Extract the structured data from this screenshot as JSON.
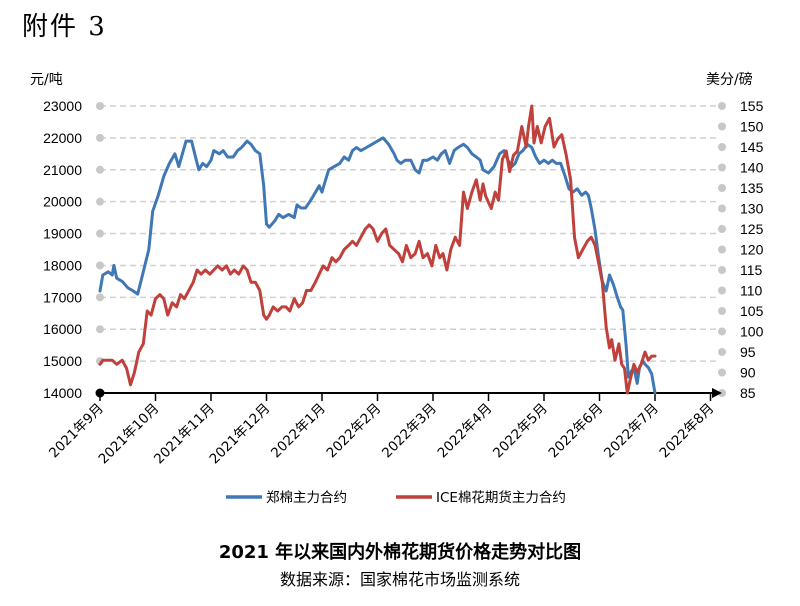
{
  "attachment_label": "附件 3",
  "title": "2021 年以来国内外棉花期货价格走势对比图",
  "source": "数据来源：国家棉花市场监测系统",
  "colors": {
    "zce": "#3f78b4",
    "ice": "#c0413c",
    "grid": "#d0d0d0",
    "axis": "#000000",
    "gridDot": "#c8c8c8"
  },
  "chart_data": {
    "type": "line",
    "y_left_label": "元/吨",
    "y_right_label": "美分/磅",
    "ylim_left": [
      14000,
      23000
    ],
    "ylim_right": [
      85,
      155
    ],
    "y_left_ticks": [
      "23000",
      "22000",
      "21000",
      "20000",
      "19000",
      "18000",
      "17000",
      "16000",
      "15000",
      "14000"
    ],
    "y_right_ticks": [
      "155",
      "150",
      "145",
      "140",
      "135",
      "130",
      "125",
      "120",
      "115",
      "110",
      "105",
      "100",
      "95",
      "90",
      "85"
    ],
    "x_categories": [
      "2021年9月",
      "2021年10月",
      "2021年11月",
      "2021年12月",
      "2022年1月",
      "2022年2月",
      "2022年3月",
      "2022年4月",
      "2022年5月",
      "2022年6月",
      "2022年7月",
      "2022年8月"
    ],
    "series": [
      {
        "name": "郑棉主力合约",
        "axis": "left",
        "points": [
          [
            0.0,
            17200
          ],
          [
            0.05,
            17700
          ],
          [
            0.15,
            17800
          ],
          [
            0.22,
            17700
          ],
          [
            0.25,
            18000
          ],
          [
            0.3,
            17600
          ],
          [
            0.4,
            17500
          ],
          [
            0.5,
            17300
          ],
          [
            0.6,
            17200
          ],
          [
            0.68,
            17100
          ],
          [
            0.78,
            17800
          ],
          [
            0.88,
            18500
          ],
          [
            0.95,
            19700
          ],
          [
            1.05,
            20200
          ],
          [
            1.15,
            20800
          ],
          [
            1.25,
            21200
          ],
          [
            1.35,
            21500
          ],
          [
            1.42,
            21100
          ],
          [
            1.5,
            21600
          ],
          [
            1.55,
            21900
          ],
          [
            1.65,
            21900
          ],
          [
            1.72,
            21400
          ],
          [
            1.78,
            21000
          ],
          [
            1.85,
            21200
          ],
          [
            1.92,
            21100
          ],
          [
            2.0,
            21300
          ],
          [
            2.05,
            21600
          ],
          [
            2.15,
            21500
          ],
          [
            2.22,
            21600
          ],
          [
            2.3,
            21400
          ],
          [
            2.4,
            21400
          ],
          [
            2.48,
            21600
          ],
          [
            2.55,
            21700
          ],
          [
            2.65,
            21900
          ],
          [
            2.72,
            21800
          ],
          [
            2.8,
            21600
          ],
          [
            2.88,
            21500
          ],
          [
            2.95,
            20500
          ],
          [
            3.0,
            19300
          ],
          [
            3.05,
            19200
          ],
          [
            3.15,
            19400
          ],
          [
            3.22,
            19600
          ],
          [
            3.3,
            19500
          ],
          [
            3.4,
            19600
          ],
          [
            3.5,
            19500
          ],
          [
            3.55,
            19900
          ],
          [
            3.62,
            19800
          ],
          [
            3.7,
            19800
          ],
          [
            3.78,
            20000
          ],
          [
            3.85,
            20200
          ],
          [
            3.95,
            20500
          ],
          [
            4.0,
            20300
          ],
          [
            4.05,
            20600
          ],
          [
            4.12,
            21000
          ],
          [
            4.22,
            21100
          ],
          [
            4.32,
            21200
          ],
          [
            4.4,
            21400
          ],
          [
            4.48,
            21300
          ],
          [
            4.55,
            21600
          ],
          [
            4.62,
            21700
          ],
          [
            4.7,
            21600
          ],
          [
            4.8,
            21700
          ],
          [
            4.9,
            21800
          ],
          [
            5.0,
            21900
          ],
          [
            5.1,
            22000
          ],
          [
            5.2,
            21800
          ],
          [
            5.3,
            21500
          ],
          [
            5.35,
            21300
          ],
          [
            5.42,
            21200
          ],
          [
            5.5,
            21300
          ],
          [
            5.6,
            21300
          ],
          [
            5.68,
            21000
          ],
          [
            5.75,
            20900
          ],
          [
            5.82,
            21300
          ],
          [
            5.9,
            21300
          ],
          [
            6.0,
            21400
          ],
          [
            6.08,
            21300
          ],
          [
            6.15,
            21500
          ],
          [
            6.22,
            21600
          ],
          [
            6.3,
            21200
          ],
          [
            6.38,
            21600
          ],
          [
            6.45,
            21700
          ],
          [
            6.55,
            21800
          ],
          [
            6.62,
            21700
          ],
          [
            6.7,
            21500
          ],
          [
            6.78,
            21400
          ],
          [
            6.85,
            21300
          ],
          [
            6.9,
            21000
          ],
          [
            7.0,
            20900
          ],
          [
            7.1,
            21100
          ],
          [
            7.2,
            21500
          ],
          [
            7.28,
            21600
          ],
          [
            7.35,
            21300
          ],
          [
            7.42,
            21100
          ],
          [
            7.48,
            21200
          ],
          [
            7.55,
            21500
          ],
          [
            7.62,
            21600
          ],
          [
            7.7,
            21800
          ],
          [
            7.78,
            21700
          ],
          [
            7.85,
            21400
          ],
          [
            7.92,
            21200
          ],
          [
            8.0,
            21300
          ],
          [
            8.08,
            21200
          ],
          [
            8.15,
            21300
          ],
          [
            8.22,
            21200
          ],
          [
            8.3,
            21200
          ],
          [
            8.38,
            20800
          ],
          [
            8.45,
            20400
          ],
          [
            8.52,
            20300
          ],
          [
            8.6,
            20400
          ],
          [
            8.68,
            20200
          ],
          [
            8.75,
            20300
          ],
          [
            8.8,
            20200
          ],
          [
            8.85,
            19800
          ],
          [
            8.92,
            19100
          ],
          [
            8.98,
            18300
          ],
          [
            9.05,
            17500
          ],
          [
            9.12,
            17200
          ],
          [
            9.18,
            17700
          ],
          [
            9.25,
            17400
          ],
          [
            9.32,
            17000
          ],
          [
            9.38,
            16700
          ],
          [
            9.42,
            16600
          ],
          [
            9.48,
            15500
          ],
          [
            9.52,
            14500
          ],
          [
            9.58,
            14700
          ],
          [
            9.62,
            14800
          ],
          [
            9.68,
            14300
          ],
          [
            9.72,
            14800
          ],
          [
            9.78,
            15000
          ],
          [
            9.82,
            14900
          ],
          [
            9.88,
            14800
          ],
          [
            9.94,
            14600
          ],
          [
            10.0,
            14000
          ]
        ]
      },
      {
        "name": "ICE棉花期货主力合约",
        "axis": "right",
        "points": [
          [
            0.0,
            92
          ],
          [
            0.05,
            93
          ],
          [
            0.15,
            93
          ],
          [
            0.22,
            93
          ],
          [
            0.3,
            92
          ],
          [
            0.4,
            93
          ],
          [
            0.48,
            91
          ],
          [
            0.55,
            87
          ],
          [
            0.62,
            90
          ],
          [
            0.7,
            95
          ],
          [
            0.78,
            97
          ],
          [
            0.85,
            105
          ],
          [
            0.92,
            104
          ],
          [
            1.0,
            108
          ],
          [
            1.08,
            109
          ],
          [
            1.15,
            108
          ],
          [
            1.22,
            104
          ],
          [
            1.3,
            107
          ],
          [
            1.38,
            106
          ],
          [
            1.45,
            109
          ],
          [
            1.52,
            108
          ],
          [
            1.6,
            110
          ],
          [
            1.68,
            112
          ],
          [
            1.75,
            115
          ],
          [
            1.82,
            114
          ],
          [
            1.9,
            115
          ],
          [
            1.98,
            114
          ],
          [
            2.05,
            115
          ],
          [
            2.12,
            116
          ],
          [
            2.2,
            115
          ],
          [
            2.28,
            116
          ],
          [
            2.35,
            114
          ],
          [
            2.42,
            115
          ],
          [
            2.5,
            114
          ],
          [
            2.58,
            116
          ],
          [
            2.65,
            115
          ],
          [
            2.72,
            112
          ],
          [
            2.8,
            112
          ],
          [
            2.88,
            110
          ],
          [
            2.95,
            104
          ],
          [
            3.0,
            103
          ],
          [
            3.05,
            104
          ],
          [
            3.12,
            106
          ],
          [
            3.2,
            105
          ],
          [
            3.28,
            106
          ],
          [
            3.35,
            106
          ],
          [
            3.42,
            105
          ],
          [
            3.5,
            108
          ],
          [
            3.58,
            106
          ],
          [
            3.65,
            107
          ],
          [
            3.72,
            110
          ],
          [
            3.8,
            110
          ],
          [
            3.88,
            112
          ],
          [
            3.95,
            114
          ],
          [
            4.02,
            116
          ],
          [
            4.1,
            115
          ],
          [
            4.18,
            118
          ],
          [
            4.25,
            117
          ],
          [
            4.32,
            118
          ],
          [
            4.4,
            120
          ],
          [
            4.48,
            121
          ],
          [
            4.55,
            122
          ],
          [
            4.62,
            121
          ],
          [
            4.7,
            123
          ],
          [
            4.78,
            125
          ],
          [
            4.85,
            126
          ],
          [
            4.92,
            125
          ],
          [
            5.0,
            122
          ],
          [
            5.08,
            124
          ],
          [
            5.15,
            125
          ],
          [
            5.22,
            121
          ],
          [
            5.3,
            120
          ],
          [
            5.38,
            119
          ],
          [
            5.45,
            117
          ],
          [
            5.52,
            121
          ],
          [
            5.6,
            118
          ],
          [
            5.68,
            119
          ],
          [
            5.75,
            122
          ],
          [
            5.82,
            118
          ],
          [
            5.9,
            119
          ],
          [
            5.98,
            116
          ],
          [
            6.05,
            121
          ],
          [
            6.12,
            118
          ],
          [
            6.18,
            119
          ],
          [
            6.25,
            115
          ],
          [
            6.32,
            120
          ],
          [
            6.4,
            123
          ],
          [
            6.48,
            121
          ],
          [
            6.55,
            134
          ],
          [
            6.62,
            130
          ],
          [
            6.7,
            134
          ],
          [
            6.78,
            137
          ],
          [
            6.85,
            132
          ],
          [
            6.9,
            136
          ],
          [
            6.95,
            133
          ],
          [
            7.05,
            130
          ],
          [
            7.12,
            134
          ],
          [
            7.18,
            132
          ],
          [
            7.25,
            142
          ],
          [
            7.32,
            144
          ],
          [
            7.38,
            139
          ],
          [
            7.45,
            143
          ],
          [
            7.52,
            144
          ],
          [
            7.6,
            150
          ],
          [
            7.68,
            145
          ],
          [
            7.72,
            150
          ],
          [
            7.78,
            155
          ],
          [
            7.82,
            146
          ],
          [
            7.88,
            150
          ],
          [
            7.95,
            146
          ],
          [
            8.02,
            150
          ],
          [
            8.1,
            152
          ],
          [
            8.18,
            145
          ],
          [
            8.25,
            147
          ],
          [
            8.32,
            148
          ],
          [
            8.4,
            143
          ],
          [
            8.48,
            137
          ],
          [
            8.55,
            123
          ],
          [
            8.62,
            118
          ],
          [
            8.7,
            120
          ],
          [
            8.78,
            122
          ],
          [
            8.85,
            123
          ],
          [
            8.92,
            121
          ],
          [
            8.98,
            117
          ],
          [
            9.05,
            112
          ],
          [
            9.12,
            101
          ],
          [
            9.18,
            96
          ],
          [
            9.22,
            98
          ],
          [
            9.28,
            93
          ],
          [
            9.35,
            97
          ],
          [
            9.4,
            92
          ],
          [
            9.45,
            91
          ],
          [
            9.5,
            85
          ],
          [
            9.55,
            88
          ],
          [
            9.62,
            92
          ],
          [
            9.68,
            90
          ],
          [
            9.75,
            92
          ],
          [
            9.82,
            95
          ],
          [
            9.88,
            93
          ],
          [
            9.94,
            94
          ],
          [
            10.0,
            94
          ]
        ]
      }
    ],
    "grid": true,
    "legend_position": "bottom"
  }
}
